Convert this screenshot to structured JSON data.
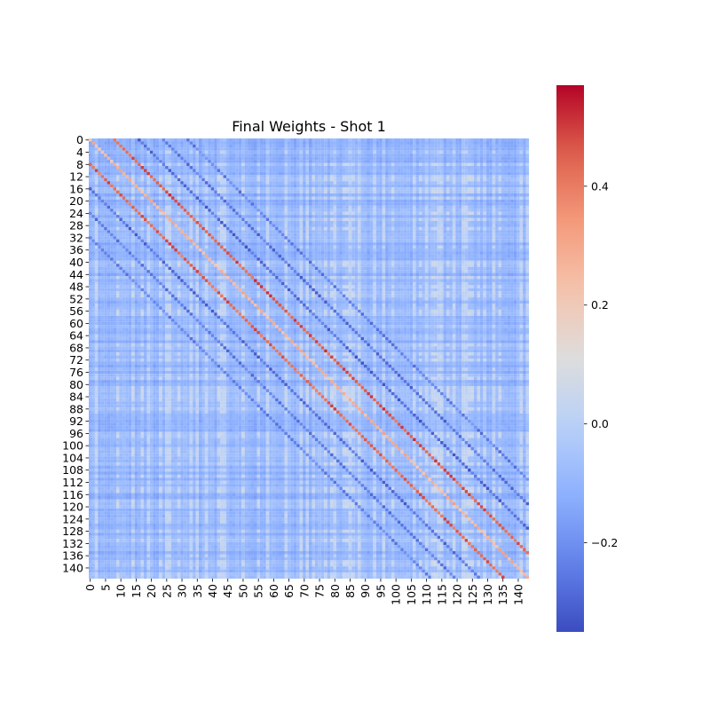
{
  "chart_data": {
    "type": "heatmap",
    "title": "Final Weights - Shot 1",
    "n_rows": 144,
    "n_cols": 144,
    "x_ticks": [
      "0",
      "5",
      "10",
      "15",
      "20",
      "25",
      "30",
      "35",
      "40",
      "45",
      "50",
      "55",
      "60",
      "65",
      "70",
      "75",
      "80",
      "85",
      "90",
      "95",
      "100",
      "105",
      "110",
      "115",
      "120",
      "125",
      "130",
      "135",
      "140"
    ],
    "x_tick_step": 5,
    "y_ticks": [
      "0",
      "4",
      "8",
      "12",
      "16",
      "20",
      "24",
      "28",
      "32",
      "36",
      "40",
      "44",
      "48",
      "52",
      "56",
      "60",
      "64",
      "68",
      "72",
      "76",
      "80",
      "84",
      "88",
      "92",
      "96",
      "100",
      "104",
      "108",
      "112",
      "116",
      "120",
      "124",
      "128",
      "132",
      "136",
      "140"
    ],
    "y_tick_step": 4,
    "colorbar": {
      "colormap": "coolwarm",
      "vmin": -0.35,
      "vmax": 0.57,
      "ticks": [
        {
          "value": 0.4,
          "label": "0.4"
        },
        {
          "value": 0.2,
          "label": "0.2"
        },
        {
          "value": 0.0,
          "label": "0.0"
        },
        {
          "value": -0.2,
          "label": "−0.2"
        }
      ]
    },
    "background": {
      "base": -0.08,
      "mid": 0.04,
      "note_values": "approximate values read from colors"
    },
    "diagonal_bands": [
      {
        "offset": 8,
        "value": 0.46,
        "start": 0
      },
      {
        "offset": -8,
        "value": 0.44,
        "start": 0
      },
      {
        "offset": 0,
        "value": 0.26,
        "start": 0
      },
      {
        "offset": 16,
        "value": -0.28,
        "start": 0
      },
      {
        "offset": -16,
        "value": -0.27,
        "start": 0
      },
      {
        "offset": 24,
        "value": -0.26,
        "start": 0
      },
      {
        "offset": -24,
        "value": -0.24,
        "start": 0
      },
      {
        "offset": 32,
        "value": -0.23,
        "start": 0
      },
      {
        "offset": -32,
        "value": -0.22,
        "start": 0
      }
    ]
  }
}
